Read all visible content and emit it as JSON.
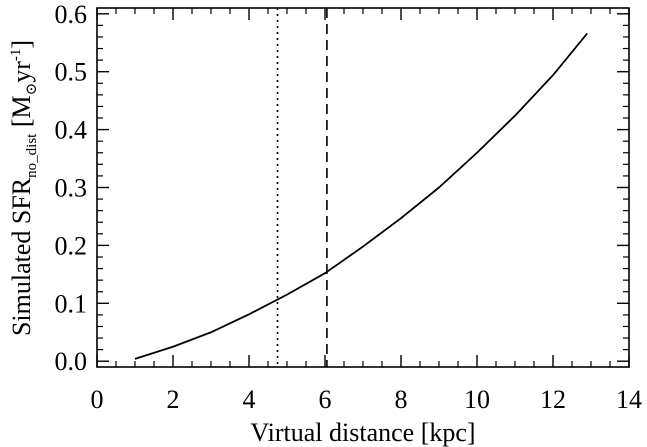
{
  "chart_data": {
    "type": "line",
    "xlabel": "Virtual distance [kpc]",
    "ylabel": {
      "main": "Simulated SFR",
      "subscript": "no_dist",
      "unit_open": " [M",
      "unit_symbol": "⊙",
      "unit_yr": "yr",
      "unit_exp": "-1",
      "unit_close": "]"
    },
    "xlim": [
      0,
      14
    ],
    "ylim": [
      -0.01,
      0.61
    ],
    "x_ticks": [
      0,
      2,
      4,
      6,
      8,
      10,
      12,
      14
    ],
    "y_ticks": [
      0.0,
      0.1,
      0.2,
      0.3,
      0.4,
      0.5,
      0.6
    ],
    "y_tick_labels": [
      "0.0",
      "0.1",
      "0.2",
      "0.3",
      "0.4",
      "0.5",
      "0.6"
    ],
    "x_minor_step": 0.5,
    "y_minor_step": 0.02,
    "grid": false,
    "series": [
      {
        "style": "solid",
        "x": [
          1.0,
          2.0,
          3.0,
          4.0,
          5.0,
          6.0,
          7.0,
          8.0,
          9.0,
          10.0,
          11.0,
          12.0,
          12.9
        ],
        "y": [
          0.004,
          0.025,
          0.05,
          0.081,
          0.115,
          0.152,
          0.198,
          0.247,
          0.3,
          0.36,
          0.424,
          0.494,
          0.566
        ]
      }
    ],
    "vlines": [
      {
        "x": 4.75,
        "style": "dotted"
      },
      {
        "x": 6.05,
        "style": "dashed"
      }
    ]
  }
}
